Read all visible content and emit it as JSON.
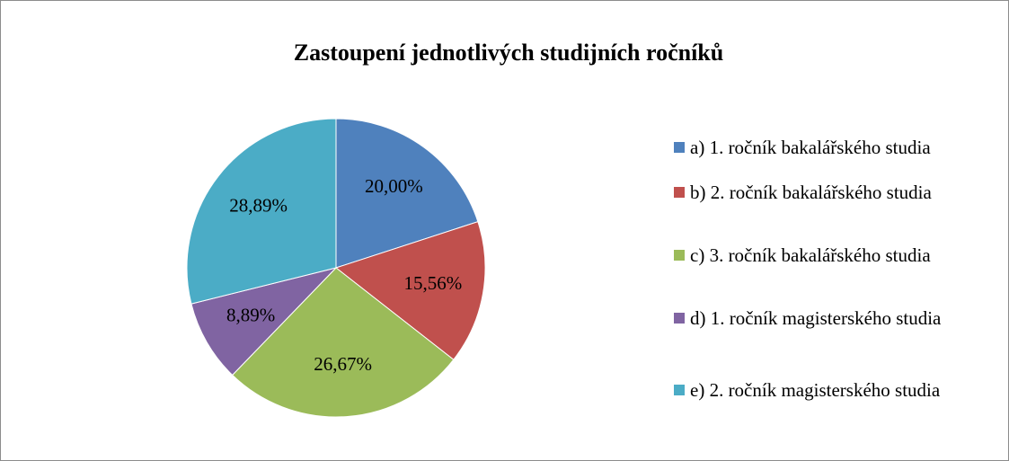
{
  "chart_data": {
    "type": "pie",
    "title": "Zastoupení jednotlivých studijních ročníků",
    "categories": [
      "a) 1. ročník bakalářského studia",
      "b) 2. ročník bakalářského studia",
      "c) 3. ročník bakalářského studia",
      "d) 1. ročník magisterského studia",
      "e) 2. ročník magisterského studia"
    ],
    "values": [
      20.0,
      15.56,
      26.67,
      8.89,
      28.89
    ],
    "value_labels": [
      "20,00%",
      "15,56%",
      "26,67%",
      "8,89%",
      "28,89%"
    ],
    "colors": [
      "#4f81bd",
      "#c0504d",
      "#9bbb59",
      "#8064a2",
      "#4bacc6"
    ],
    "legend": "right"
  }
}
